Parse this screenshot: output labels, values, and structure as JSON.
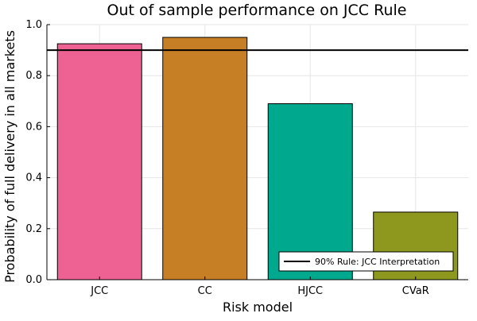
{
  "chart_data": {
    "type": "bar",
    "title": "Out of sample performance on JCC Rule",
    "xlabel": "Risk model",
    "ylabel": "Probability of full delivery in all markets",
    "categories": [
      "JCC",
      "CC",
      "HJCC",
      "CVaR"
    ],
    "values": [
      0.925,
      0.95,
      0.69,
      0.265
    ],
    "bar_colors": [
      "#EE6193",
      "#C77F25",
      "#00A98D",
      "#8E971E"
    ],
    "ylim": [
      0,
      1.0
    ],
    "yticks": [
      0.0,
      0.2,
      0.4,
      0.6,
      0.8,
      1.0
    ],
    "ytick_labels": [
      "0.0",
      "0.2",
      "0.4",
      "0.6",
      "0.8",
      "1.0"
    ],
    "grid": true,
    "reference_line": {
      "value": 0.9,
      "label": "90% Rule: JCC Interpretation",
      "color": "#000000"
    },
    "legend_position": "bottom-right"
  }
}
